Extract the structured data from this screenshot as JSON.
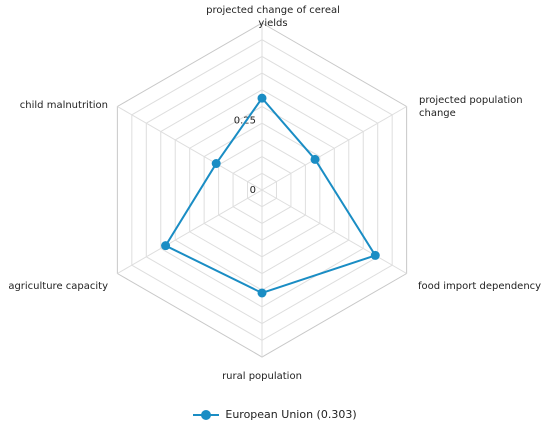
{
  "chart_data": {
    "type": "radar",
    "axes": [
      "projected change of cereal yields",
      "projected population change",
      "food import dependency",
      "rural population",
      "agriculture capacity",
      "child malnutrition"
    ],
    "axis_label_lines": [
      [
        "projected change of cereal",
        "yields"
      ],
      [
        "projected population",
        "change"
      ],
      [
        "food import dependency"
      ],
      [
        "rural population"
      ],
      [
        "agriculture capacity"
      ],
      [
        "child malnutrition"
      ]
    ],
    "radial_tick_labels": [
      "0",
      "0.25"
    ],
    "range": [
      0,
      0.6
    ],
    "grid": true,
    "legend_position": "bottom",
    "series": [
      {
        "name": "European Union (0.303)",
        "color": "#1a8dc4",
        "values": [
          0.33,
          0.22,
          0.47,
          0.37,
          0.4,
          0.19
        ]
      }
    ]
  }
}
